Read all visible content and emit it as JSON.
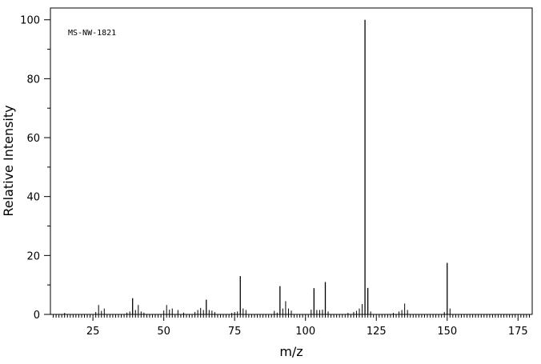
{
  "chart_data": {
    "type": "bar",
    "annotation": "MS-NW-1821",
    "xlabel": "m/z",
    "ylabel": "Relative Intensity",
    "xlim": [
      10,
      180
    ],
    "ylim": [
      0,
      104
    ],
    "x_ticks_major": [
      25,
      50,
      75,
      100,
      125,
      150,
      175
    ],
    "x_tick_labels": [
      "25",
      "50",
      "75",
      "100",
      "125",
      "150",
      "175"
    ],
    "y_ticks_major": [
      0,
      20,
      40,
      60,
      80,
      100
    ],
    "y_tick_labels": [
      "0",
      "20",
      "40",
      "60",
      "80",
      "100"
    ],
    "grid": false,
    "legend": "none",
    "series": [
      {
        "x": [
          15,
          26,
          27,
          28,
          29,
          37,
          38,
          39,
          40,
          41,
          42,
          43,
          50,
          51,
          52,
          53,
          55,
          57,
          61,
          62,
          63,
          64,
          65,
          66,
          67,
          68,
          74,
          75,
          76,
          77,
          78,
          79,
          89,
          90,
          91,
          92,
          93,
          94,
          95,
          102,
          103,
          104,
          105,
          106,
          107,
          108,
          115,
          117,
          118,
          119,
          120,
          121,
          122,
          123,
          131,
          133,
          134,
          135,
          136,
          149,
          150,
          151
        ],
        "values": [
          0.5,
          0.8,
          3.2,
          1.2,
          2.0,
          0.6,
          1.0,
          5.5,
          1.5,
          3.2,
          1.0,
          0.6,
          1.3,
          3.2,
          1.6,
          2.0,
          1.5,
          0.6,
          0.8,
          1.5,
          2.2,
          1.5,
          5.0,
          1.5,
          1.3,
          0.8,
          0.5,
          0.8,
          1.0,
          13.0,
          2.0,
          1.5,
          1.2,
          0.6,
          9.6,
          2.0,
          4.5,
          2.0,
          1.3,
          1.6,
          8.9,
          1.5,
          1.5,
          1.6,
          11.0,
          1.0,
          0.5,
          0.8,
          1.2,
          2.0,
          3.5,
          100,
          9.0,
          1.0,
          0.5,
          1.0,
          1.5,
          3.7,
          1.5,
          0.8,
          17.5,
          2.0
        ]
      }
    ]
  }
}
